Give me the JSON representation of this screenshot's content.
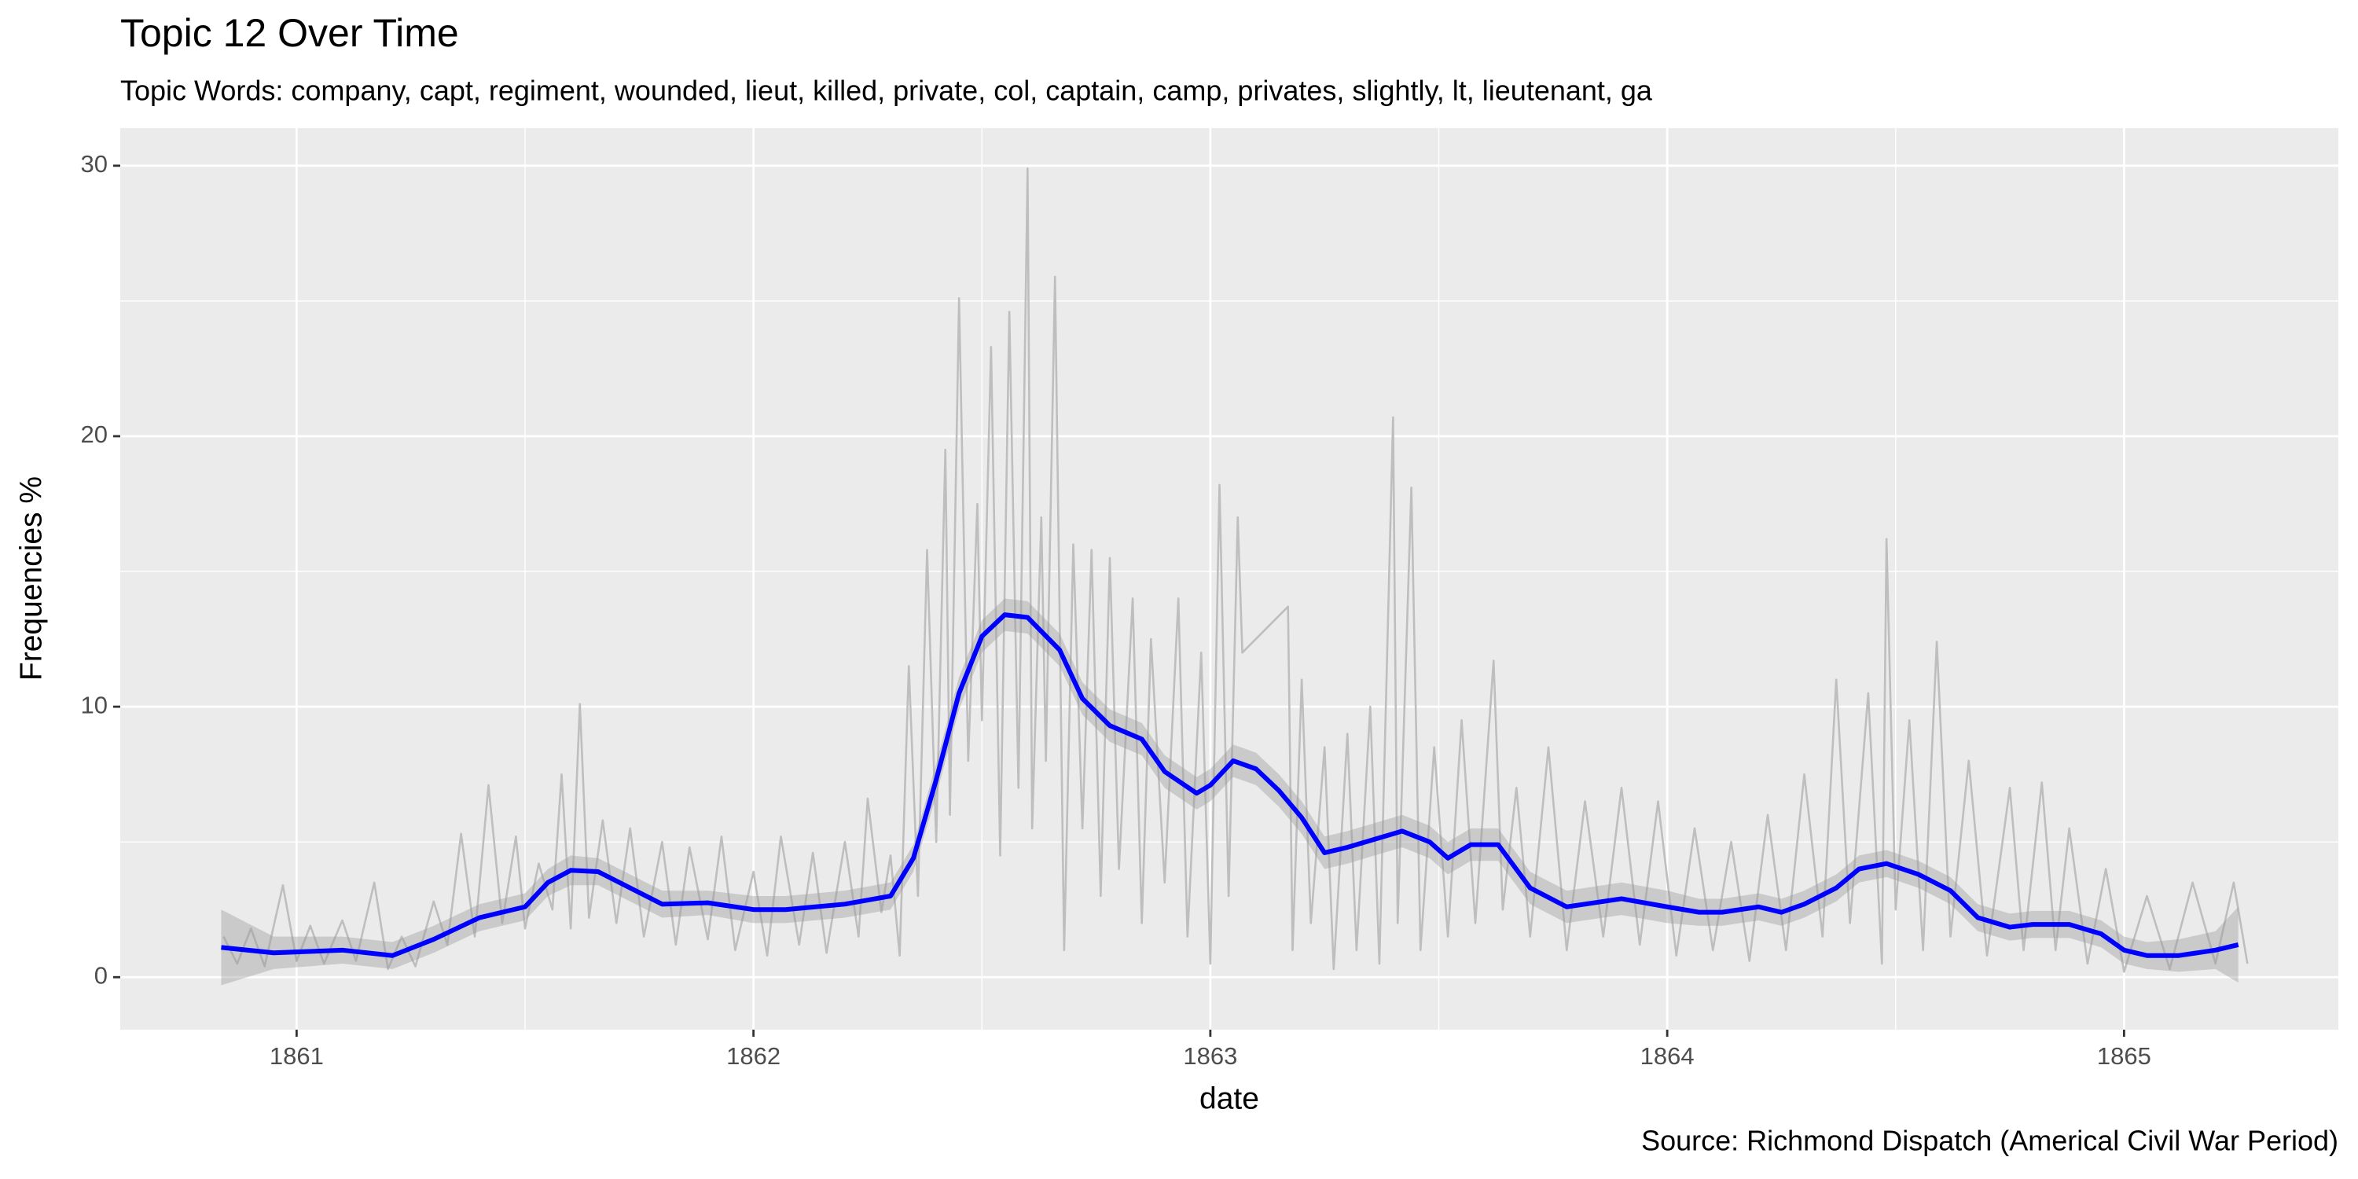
{
  "chart_data": {
    "type": "line",
    "title": "Topic 12 Over Time",
    "subtitle": "Topic Words: company, capt, regiment, wounded, lieut, killed, private, col, captain, camp, privates, slightly, lt, lieutenant, ga",
    "x_label": "date",
    "y_label": "Frequencies %",
    "caption": "Source: Richmond Dispatch (Americal Civil War Period)",
    "xlim": [
      1860.614,
      1865.469
    ],
    "ylim": [
      -1.94,
      31.39
    ],
    "xticks": [
      1861,
      1862,
      1863,
      1864,
      1865
    ],
    "yticks": [
      0,
      10,
      20,
      30
    ],
    "xminorticks": [
      1861.5,
      1862.5,
      1863.5,
      1864.5
    ],
    "yminorticks": [
      5,
      15,
      25
    ],
    "grid": true,
    "panel_color": "#ebebeb",
    "series": [
      {
        "kind": "raw",
        "color": "#bebebe",
        "x": [
          1860.84,
          1860.87,
          1860.9,
          1860.93,
          1860.97,
          1861.0,
          1861.03,
          1861.06,
          1861.1,
          1861.13,
          1861.17,
          1861.2,
          1861.23,
          1861.26,
          1861.3,
          1861.33,
          1861.36,
          1861.39,
          1861.42,
          1861.45,
          1861.48,
          1861.5,
          1861.53,
          1861.56,
          1861.58,
          1861.6,
          1861.62,
          1861.64,
          1861.67,
          1861.7,
          1861.73,
          1861.76,
          1861.8,
          1861.83,
          1861.86,
          1861.9,
          1861.93,
          1861.96,
          1862.0,
          1862.03,
          1862.06,
          1862.1,
          1862.13,
          1862.16,
          1862.2,
          1862.23,
          1862.25,
          1862.28,
          1862.3,
          1862.32,
          1862.34,
          1862.36,
          1862.38,
          1862.4,
          1862.42,
          1862.43,
          1862.45,
          1862.47,
          1862.49,
          1862.5,
          1862.52,
          1862.54,
          1862.56,
          1862.58,
          1862.6,
          1862.61,
          1862.63,
          1862.64,
          1862.66,
          1862.68,
          1862.7,
          1862.72,
          1862.74,
          1862.76,
          1862.78,
          1862.8,
          1862.83,
          1862.85,
          1862.87,
          1862.9,
          1862.93,
          1862.95,
          1862.98,
          1863.0,
          1863.02,
          1863.04,
          1863.06,
          1863.07,
          1863.17,
          1863.18,
          1863.2,
          1863.22,
          1863.25,
          1863.27,
          1863.3,
          1863.32,
          1863.35,
          1863.37,
          1863.4,
          1863.41,
          1863.44,
          1863.46,
          1863.49,
          1863.52,
          1863.55,
          1863.58,
          1863.62,
          1863.64,
          1863.67,
          1863.7,
          1863.74,
          1863.78,
          1863.82,
          1863.86,
          1863.9,
          1863.94,
          1863.98,
          1864.02,
          1864.06,
          1864.1,
          1864.14,
          1864.18,
          1864.22,
          1864.26,
          1864.3,
          1864.34,
          1864.37,
          1864.4,
          1864.44,
          1864.47,
          1864.48,
          1864.5,
          1864.53,
          1864.56,
          1864.59,
          1864.62,
          1864.66,
          1864.7,
          1864.75,
          1864.78,
          1864.82,
          1864.85,
          1864.88,
          1864.92,
          1864.96,
          1865.0,
          1865.05,
          1865.1,
          1865.15,
          1865.2,
          1865.24,
          1865.27
        ],
        "values": [
          1.5,
          0.5,
          1.8,
          0.4,
          3.4,
          0.6,
          1.9,
          0.5,
          2.1,
          0.6,
          3.5,
          0.3,
          1.5,
          0.4,
          2.8,
          1.2,
          5.3,
          1.5,
          7.1,
          2.0,
          5.2,
          1.8,
          4.2,
          2.5,
          7.5,
          1.8,
          10.1,
          2.2,
          5.8,
          2.0,
          5.5,
          1.5,
          5.0,
          1.2,
          4.8,
          1.4,
          5.2,
          1.0,
          3.9,
          0.8,
          5.2,
          1.2,
          4.6,
          0.9,
          5.0,
          1.5,
          6.6,
          2.4,
          4.5,
          0.8,
          11.5,
          3.0,
          15.8,
          5.0,
          19.5,
          6.0,
          25.1,
          8.0,
          17.5,
          9.5,
          23.3,
          4.5,
          24.6,
          7.0,
          29.9,
          5.5,
          17.0,
          8.0,
          25.9,
          1.0,
          16.0,
          5.5,
          15.8,
          3.0,
          15.5,
          4.0,
          14.0,
          2.0,
          12.5,
          3.5,
          14.0,
          1.5,
          12.0,
          0.5,
          18.2,
          3.0,
          17.0,
          12.0,
          13.7,
          1.0,
          11.0,
          2.0,
          8.5,
          0.3,
          9.0,
          1.0,
          10.0,
          0.5,
          20.7,
          2.0,
          18.1,
          1.0,
          8.5,
          1.5,
          9.5,
          2.0,
          11.7,
          2.5,
          7.0,
          1.5,
          8.5,
          1.0,
          6.5,
          1.5,
          7.0,
          1.2,
          6.5,
          0.8,
          5.5,
          1.0,
          5.0,
          0.6,
          6.0,
          1.0,
          7.5,
          1.5,
          11.0,
          2.0,
          10.5,
          0.5,
          16.2,
          2.5,
          9.5,
          1.0,
          12.4,
          1.5,
          8.0,
          0.8,
          7.0,
          1.0,
          7.2,
          1.0,
          5.5,
          0.5,
          4.0,
          0.2,
          3.0,
          0.3,
          3.5,
          0.5,
          3.5,
          0.5
        ]
      },
      {
        "kind": "ribbon",
        "color": "#999999",
        "x": [
          1860.835,
          1860.95,
          1861.1,
          1861.21,
          1861.3,
          1861.4,
          1861.5,
          1861.55,
          1861.6,
          1861.66,
          1861.73,
          1861.8,
          1861.9,
          1862.0,
          1862.07,
          1862.2,
          1862.3,
          1862.35,
          1862.4,
          1862.45,
          1862.5,
          1862.55,
          1862.6,
          1862.67,
          1862.72,
          1862.78,
          1862.85,
          1862.9,
          1862.97,
          1863.0,
          1863.05,
          1863.1,
          1863.15,
          1863.2,
          1863.25,
          1863.3,
          1863.38,
          1863.42,
          1863.48,
          1863.52,
          1863.57,
          1863.63,
          1863.7,
          1863.78,
          1863.9,
          1864.0,
          1864.07,
          1864.12,
          1864.2,
          1864.25,
          1864.3,
          1864.37,
          1864.42,
          1864.48,
          1864.55,
          1864.62,
          1864.68,
          1864.75,
          1864.8,
          1864.88,
          1864.95,
          1865.0,
          1865.05,
          1865.12,
          1865.2,
          1865.25
        ],
        "lower": [
          -0.3,
          0.3,
          0.5,
          0.3,
          0.9,
          1.7,
          2.1,
          3.0,
          3.4,
          3.4,
          2.8,
          2.2,
          2.3,
          2.0,
          2.0,
          2.2,
          2.5,
          3.9,
          6.7,
          9.9,
          12.0,
          12.8,
          12.7,
          11.5,
          9.7,
          8.7,
          8.2,
          7.0,
          6.2,
          6.5,
          7.4,
          7.1,
          6.3,
          5.3,
          4.0,
          4.2,
          4.6,
          4.8,
          4.4,
          3.8,
          4.3,
          4.3,
          2.7,
          2.0,
          2.3,
          2.0,
          1.9,
          1.9,
          2.1,
          1.9,
          2.2,
          2.8,
          3.5,
          3.7,
          3.3,
          2.7,
          1.7,
          1.35,
          1.45,
          1.45,
          1.1,
          0.5,
          0.3,
          0.2,
          0.3,
          -0.2
        ],
        "upper": [
          2.5,
          1.5,
          1.5,
          1.3,
          1.9,
          2.7,
          3.1,
          4.0,
          4.5,
          4.4,
          3.8,
          3.2,
          3.2,
          3.0,
          3.0,
          3.2,
          3.5,
          4.9,
          7.9,
          11.1,
          13.2,
          14.0,
          13.9,
          12.7,
          10.9,
          9.9,
          9.4,
          8.2,
          7.4,
          7.7,
          8.6,
          8.3,
          7.5,
          6.5,
          5.2,
          5.4,
          5.8,
          6.0,
          5.6,
          5.0,
          5.5,
          5.5,
          3.9,
          3.2,
          3.5,
          3.2,
          2.9,
          2.9,
          3.1,
          2.9,
          3.2,
          3.8,
          4.5,
          4.7,
          4.3,
          3.7,
          2.7,
          2.35,
          2.45,
          2.45,
          2.1,
          1.5,
          1.3,
          1.4,
          1.7,
          2.6
        ]
      },
      {
        "kind": "smooth",
        "color": "#0000ff",
        "x": [
          1860.835,
          1860.95,
          1861.1,
          1861.21,
          1861.3,
          1861.4,
          1861.5,
          1861.55,
          1861.6,
          1861.66,
          1861.73,
          1861.8,
          1861.9,
          1862.0,
          1862.07,
          1862.2,
          1862.3,
          1862.35,
          1862.4,
          1862.45,
          1862.5,
          1862.55,
          1862.6,
          1862.67,
          1862.72,
          1862.78,
          1862.85,
          1862.9,
          1862.97,
          1863.0,
          1863.05,
          1863.1,
          1863.15,
          1863.2,
          1863.25,
          1863.3,
          1863.38,
          1863.42,
          1863.48,
          1863.52,
          1863.57,
          1863.63,
          1863.7,
          1863.78,
          1863.9,
          1864.0,
          1864.07,
          1864.12,
          1864.2,
          1864.25,
          1864.3,
          1864.37,
          1864.42,
          1864.48,
          1864.55,
          1864.62,
          1864.68,
          1864.75,
          1864.8,
          1864.88,
          1864.95,
          1865.0,
          1865.05,
          1865.12,
          1865.2,
          1865.25
        ],
        "values": [
          1.1,
          0.9,
          1.0,
          0.8,
          1.4,
          2.2,
          2.6,
          3.5,
          3.95,
          3.9,
          3.3,
          2.7,
          2.75,
          2.5,
          2.5,
          2.7,
          3.0,
          4.4,
          7.3,
          10.5,
          12.6,
          13.4,
          13.3,
          12.1,
          10.3,
          9.3,
          8.8,
          7.6,
          6.8,
          7.1,
          8.0,
          7.7,
          6.9,
          5.9,
          4.6,
          4.8,
          5.2,
          5.4,
          5.0,
          4.4,
          4.9,
          4.9,
          3.3,
          2.6,
          2.9,
          2.6,
          2.4,
          2.4,
          2.6,
          2.4,
          2.7,
          3.3,
          4.0,
          4.2,
          3.8,
          3.2,
          2.2,
          1.85,
          1.95,
          1.95,
          1.6,
          1.0,
          0.8,
          0.8,
          1.0,
          1.2
        ]
      }
    ]
  }
}
